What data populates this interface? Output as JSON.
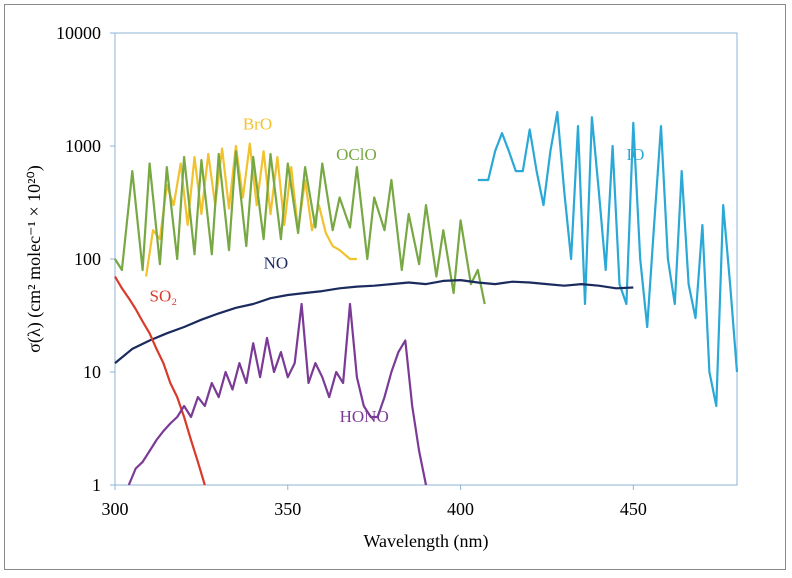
{
  "chart_data": {
    "type": "line",
    "xlabel": "Wavelength (nm)",
    "ylabel": "σ(λ) (cm² molec⁻¹ × 10²⁰)",
    "xlim": [
      300,
      480
    ],
    "ylim": [
      1,
      10000
    ],
    "yscale": "log",
    "x_ticks": [
      "300",
      "350",
      "400",
      "450"
    ],
    "y_ticks": [
      "1",
      "10",
      "100",
      "1000",
      "10000"
    ],
    "grid": false,
    "series": [
      {
        "name": "BrO",
        "color": "#f2c12e",
        "x": [
          309,
          311,
          313,
          315,
          317,
          319,
          321,
          323,
          325,
          327,
          329,
          331,
          333,
          335,
          337,
          339,
          341,
          343,
          345,
          347,
          349,
          351,
          353,
          355,
          357,
          359,
          361,
          363,
          365,
          368,
          370
        ],
        "y": [
          70,
          180,
          150,
          450,
          300,
          700,
          200,
          800,
          250,
          850,
          300,
          950,
          280,
          1000,
          350,
          1050,
          300,
          900,
          250,
          800,
          200,
          650,
          180,
          500,
          180,
          300,
          170,
          130,
          120,
          100,
          100
        ]
      },
      {
        "name": "OClO",
        "color": "#77a844",
        "x": [
          300,
          302,
          305,
          308,
          310,
          313,
          315,
          318,
          320,
          323,
          325,
          328,
          330,
          333,
          335,
          338,
          340,
          343,
          345,
          348,
          350,
          353,
          355,
          358,
          360,
          363,
          365,
          368,
          370,
          373,
          375,
          378,
          380,
          383,
          385,
          388,
          390,
          393,
          395,
          398,
          400,
          403,
          405,
          407
        ],
        "y": [
          100,
          80,
          600,
          80,
          700,
          90,
          650,
          100,
          800,
          110,
          750,
          110,
          850,
          120,
          900,
          130,
          800,
          150,
          850,
          150,
          700,
          170,
          650,
          190,
          700,
          180,
          350,
          190,
          650,
          100,
          350,
          180,
          500,
          80,
          250,
          90,
          300,
          70,
          180,
          50,
          220,
          60,
          80,
          40
        ]
      },
      {
        "name": "IO",
        "color": "#2aa8d6",
        "x": [
          405,
          408,
          410,
          412,
          414,
          416,
          418,
          420,
          422,
          424,
          426,
          428,
          430,
          432,
          434,
          436,
          438,
          440,
          442,
          444,
          446,
          448,
          450,
          452,
          454,
          456,
          458,
          460,
          462,
          464,
          466,
          468,
          470,
          472,
          474,
          476,
          478,
          480
        ],
        "y": [
          500,
          500,
          900,
          1300,
          900,
          600,
          600,
          1400,
          600,
          300,
          900,
          2000,
          400,
          100,
          1500,
          40,
          1800,
          400,
          80,
          1000,
          60,
          40,
          1600,
          100,
          25,
          200,
          1500,
          100,
          40,
          600,
          60,
          30,
          200,
          10,
          5,
          300,
          60,
          10
        ]
      },
      {
        "name": "NO",
        "color": "#1b2b5e",
        "x": [
          300,
          305,
          310,
          315,
          320,
          325,
          330,
          335,
          340,
          345,
          350,
          355,
          360,
          365,
          370,
          375,
          380,
          385,
          390,
          395,
          400,
          405,
          410,
          415,
          420,
          425,
          430,
          435,
          440,
          445,
          450
        ],
        "y": [
          12,
          16,
          19,
          22,
          25,
          29,
          33,
          37,
          40,
          45,
          48,
          50,
          52,
          55,
          57,
          58,
          60,
          62,
          60,
          64,
          65,
          62,
          60,
          63,
          62,
          60,
          58,
          60,
          58,
          55,
          56
        ]
      },
      {
        "name": "SO₂",
        "color": "#d93b2b",
        "x": [
          300,
          302,
          304,
          306,
          308,
          310,
          312,
          314,
          316,
          318,
          320,
          322,
          324,
          326
        ],
        "y": [
          70,
          55,
          45,
          36,
          28,
          22,
          16,
          12,
          8,
          6,
          4,
          2.5,
          1.6,
          1
        ]
      },
      {
        "name": "HONO",
        "color": "#7b3a96",
        "x": [
          304,
          306,
          308,
          310,
          312,
          314,
          316,
          318,
          320,
          322,
          324,
          326,
          328,
          330,
          332,
          334,
          336,
          338,
          340,
          342,
          344,
          346,
          348,
          350,
          352,
          354,
          356,
          358,
          360,
          362,
          364,
          366,
          368,
          370,
          372,
          374,
          376,
          378,
          380,
          382,
          384,
          386,
          388,
          390
        ],
        "y": [
          1,
          1.4,
          1.6,
          2,
          2.5,
          3,
          3.5,
          4,
          5,
          4,
          6,
          5,
          8,
          6,
          10,
          7,
          12,
          8,
          18,
          9,
          20,
          10,
          15,
          9,
          12,
          40,
          8,
          12,
          9,
          6,
          10,
          8,
          40,
          9,
          5,
          4,
          4,
          6,
          10,
          15,
          19,
          5,
          2,
          1
        ]
      }
    ]
  }
}
